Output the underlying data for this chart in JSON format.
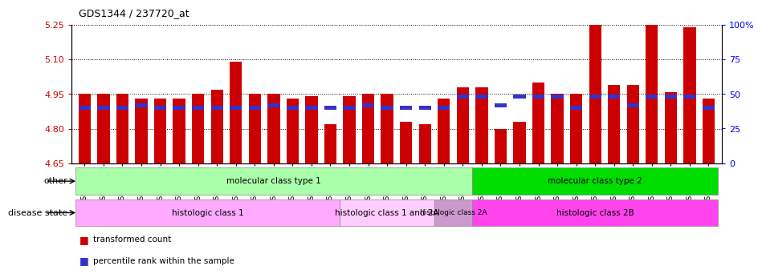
{
  "title": "GDS1344 / 237720_at",
  "samples": [
    "GSM60242",
    "GSM60243",
    "GSM60246",
    "GSM60247",
    "GSM60248",
    "GSM60249",
    "GSM60250",
    "GSM60251",
    "GSM60252",
    "GSM60253",
    "GSM60254",
    "GSM60257",
    "GSM60260",
    "GSM60269",
    "GSM60245",
    "GSM60255",
    "GSM60262",
    "GSM60267",
    "GSM60268",
    "GSM60244",
    "GSM60261",
    "GSM60266",
    "GSM60270",
    "GSM60241",
    "GSM60256",
    "GSM60258",
    "GSM60259",
    "GSM60263",
    "GSM60264",
    "GSM60265",
    "GSM60271",
    "GSM60272",
    "GSM60273",
    "GSM60274"
  ],
  "transformed_count": [
    4.95,
    4.95,
    4.95,
    4.93,
    4.93,
    4.93,
    4.95,
    4.97,
    5.09,
    4.95,
    4.95,
    4.93,
    4.94,
    4.82,
    4.94,
    4.95,
    4.95,
    4.83,
    4.82,
    4.93,
    4.98,
    4.98,
    4.8,
    4.83,
    5.0,
    4.95,
    4.95,
    5.28,
    4.99,
    4.99,
    5.25,
    4.96,
    5.24,
    4.93
  ],
  "percentile_rank": [
    40,
    40,
    40,
    42,
    40,
    40,
    40,
    40,
    40,
    40,
    42,
    40,
    40,
    40,
    40,
    42,
    40,
    40,
    40,
    40,
    48,
    48,
    42,
    48,
    48,
    48,
    40,
    48,
    48,
    42,
    48,
    48,
    48,
    40
  ],
  "base_value": 4.65,
  "ylim_left": [
    4.65,
    5.25
  ],
  "ylim_right": [
    0,
    100
  ],
  "yticks_left": [
    4.65,
    4.8,
    4.95,
    5.1,
    5.25
  ],
  "yticks_right": [
    0,
    25,
    50,
    75,
    100
  ],
  "bar_color_red": "#CC0000",
  "bar_color_blue": "#3333CC",
  "plot_bg": "#ffffff",
  "groups_other": [
    {
      "label": "molecular class type 1",
      "start": 0,
      "end": 21,
      "color": "#AAFFAA"
    },
    {
      "label": "molecular class type 2",
      "start": 21,
      "end": 34,
      "color": "#00DD00"
    }
  ],
  "groups_disease": [
    {
      "label": "histologic class 1",
      "start": 0,
      "end": 14,
      "color": "#FFAAFF"
    },
    {
      "label": "histologic class 1 and 2A",
      "start": 14,
      "end": 19,
      "color": "#FFCCFF"
    },
    {
      "label": "histologic class 2A",
      "start": 19,
      "end": 21,
      "color": "#CC99CC"
    },
    {
      "label": "histologic class 2B",
      "start": 21,
      "end": 34,
      "color": "#FF44EE"
    }
  ]
}
